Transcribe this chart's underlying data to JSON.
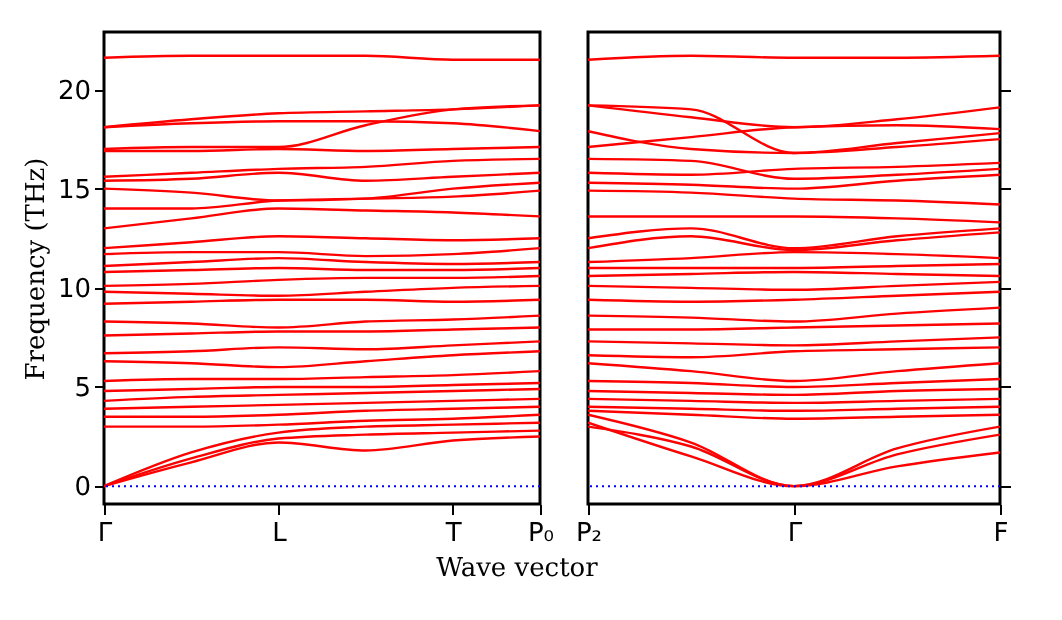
{
  "chart_data": [
    {
      "type": "line",
      "xlabel": "Wave vector",
      "ylabel": "Frequency (THz)",
      "categories": [
        "Γ",
        null,
        "L",
        null,
        "T",
        "P₀"
      ],
      "ylim": [
        -0.9,
        22.9
      ],
      "yticks": [
        0,
        5,
        10,
        15,
        20
      ],
      "grid": false,
      "legend": false,
      "marker": "none",
      "line_style": "solid",
      "ref_lines": [
        {
          "axis": "y",
          "value": 0,
          "color": "#0000ff",
          "line_style": "dotted"
        }
      ],
      "series": [
        {
          "color": "#ff0000",
          "values": [
            0,
            1.2,
            2.2,
            1.8,
            2.3,
            2.5
          ]
        },
        {
          "color": "#ff0000",
          "values": [
            0,
            1.4,
            2.4,
            2.6,
            2.7,
            2.8
          ]
        },
        {
          "color": "#ff0000",
          "values": [
            0,
            1.7,
            2.7,
            3.0,
            3.1,
            3.2
          ]
        },
        {
          "color": "#ff0000",
          "values": [
            3.0,
            3.0,
            3.1,
            3.3,
            3.4,
            3.6
          ]
        },
        {
          "color": "#ff0000",
          "values": [
            3.5,
            3.5,
            3.6,
            3.8,
            3.9,
            4.0
          ]
        },
        {
          "color": "#ff0000",
          "values": [
            3.9,
            4.0,
            4.1,
            4.2,
            4.3,
            4.4
          ]
        },
        {
          "color": "#ff0000",
          "values": [
            4.3,
            4.5,
            4.6,
            4.7,
            4.8,
            4.9
          ]
        },
        {
          "color": "#ff0000",
          "values": [
            4.8,
            4.9,
            5.0,
            5.0,
            5.1,
            5.2
          ]
        },
        {
          "color": "#ff0000",
          "values": [
            5.3,
            5.4,
            5.4,
            5.5,
            5.6,
            5.8
          ]
        },
        {
          "color": "#ff0000",
          "values": [
            6.3,
            6.2,
            6.0,
            6.3,
            6.6,
            6.8
          ]
        },
        {
          "color": "#ff0000",
          "values": [
            6.7,
            6.8,
            7.0,
            6.9,
            7.1,
            7.3
          ]
        },
        {
          "color": "#ff0000",
          "values": [
            7.6,
            7.7,
            7.8,
            7.8,
            7.9,
            8.0
          ]
        },
        {
          "color": "#ff0000",
          "values": [
            8.3,
            8.2,
            8.0,
            8.3,
            8.4,
            8.6
          ]
        },
        {
          "color": "#ff0000",
          "values": [
            9.2,
            9.3,
            9.4,
            9.4,
            9.3,
            9.4
          ]
        },
        {
          "color": "#ff0000",
          "values": [
            9.8,
            9.7,
            9.6,
            9.8,
            10.0,
            10.1
          ]
        },
        {
          "color": "#ff0000",
          "values": [
            10.1,
            10.2,
            10.4,
            10.5,
            10.5,
            10.6
          ]
        },
        {
          "color": "#ff0000",
          "values": [
            10.8,
            10.9,
            11.0,
            10.9,
            10.9,
            11.0
          ]
        },
        {
          "color": "#ff0000",
          "values": [
            11.1,
            11.3,
            11.5,
            11.3,
            11.2,
            11.3
          ]
        },
        {
          "color": "#ff0000",
          "values": [
            11.7,
            11.8,
            11.8,
            11.6,
            11.7,
            12.0
          ]
        },
        {
          "color": "#ff0000",
          "values": [
            12.0,
            12.3,
            12.6,
            12.5,
            12.4,
            12.5
          ]
        },
        {
          "color": "#ff0000",
          "values": [
            13.0,
            13.5,
            14.0,
            13.9,
            13.8,
            13.6
          ]
        },
        {
          "color": "#ff0000",
          "values": [
            14.0,
            14.0,
            14.4,
            14.5,
            14.6,
            14.9
          ]
        },
        {
          "color": "#ff0000",
          "values": [
            15.0,
            14.8,
            14.4,
            14.5,
            15.0,
            15.3
          ]
        },
        {
          "color": "#ff0000",
          "values": [
            15.4,
            15.5,
            15.8,
            15.4,
            15.6,
            15.8
          ]
        },
        {
          "color": "#ff0000",
          "values": [
            15.6,
            15.8,
            16.0,
            16.1,
            16.4,
            16.5
          ]
        },
        {
          "color": "#ff0000",
          "values": [
            16.9,
            16.9,
            17.0,
            16.9,
            17.0,
            17.1
          ]
        },
        {
          "color": "#ff0000",
          "values": [
            17.0,
            17.1,
            17.1,
            18.2,
            19.0,
            19.2
          ]
        },
        {
          "color": "#ff0000",
          "values": [
            18.1,
            18.3,
            18.4,
            18.4,
            18.3,
            17.9
          ]
        },
        {
          "color": "#ff0000",
          "values": [
            18.1,
            18.5,
            18.8,
            18.9,
            19.0,
            19.2
          ]
        },
        {
          "color": "#ff0000",
          "values": [
            21.6,
            21.7,
            21.7,
            21.7,
            21.5,
            21.5
          ]
        }
      ]
    },
    {
      "type": "line",
      "categories": [
        "P₂",
        null,
        "Γ",
        null,
        "F"
      ],
      "ylim": [
        -0.9,
        22.9
      ],
      "yticks": [
        0,
        5,
        10,
        15,
        20
      ],
      "tick_labels": "x",
      "grid": false,
      "legend": false,
      "marker": "none",
      "line_style": "solid",
      "ref_lines": [
        {
          "axis": "y",
          "value": 0,
          "color": "#0000ff",
          "line_style": "dotted"
        }
      ],
      "series": [
        {
          "color": "#ff0000",
          "values": [
            3.2,
            1.5,
            0,
            1.0,
            1.7
          ]
        },
        {
          "color": "#ff0000",
          "values": [
            3.0,
            2.0,
            0,
            1.6,
            2.6
          ]
        },
        {
          "color": "#ff0000",
          "values": [
            3.6,
            2.2,
            0,
            1.9,
            3.0
          ]
        },
        {
          "color": "#ff0000",
          "values": [
            3.8,
            3.6,
            3.4,
            3.5,
            3.6
          ]
        },
        {
          "color": "#ff0000",
          "values": [
            4.0,
            3.9,
            3.8,
            3.9,
            4.0
          ]
        },
        {
          "color": "#ff0000",
          "values": [
            4.4,
            4.3,
            4.2,
            4.3,
            4.4
          ]
        },
        {
          "color": "#ff0000",
          "values": [
            4.8,
            4.7,
            4.6,
            4.8,
            4.9
          ]
        },
        {
          "color": "#ff0000",
          "values": [
            5.3,
            5.2,
            5.0,
            5.2,
            5.4
          ]
        },
        {
          "color": "#ff0000",
          "values": [
            6.2,
            5.8,
            5.3,
            5.8,
            6.2
          ]
        },
        {
          "color": "#ff0000",
          "values": [
            6.6,
            6.5,
            6.8,
            6.9,
            7.0
          ]
        },
        {
          "color": "#ff0000",
          "values": [
            7.3,
            7.2,
            7.1,
            7.3,
            7.5
          ]
        },
        {
          "color": "#ff0000",
          "values": [
            7.9,
            7.9,
            8.0,
            8.1,
            8.2
          ]
        },
        {
          "color": "#ff0000",
          "values": [
            8.6,
            8.5,
            8.3,
            8.7,
            9.0
          ]
        },
        {
          "color": "#ff0000",
          "values": [
            9.4,
            9.3,
            9.4,
            9.6,
            9.8
          ]
        },
        {
          "color": "#ff0000",
          "values": [
            10.1,
            10.0,
            9.9,
            10.1,
            10.3
          ]
        },
        {
          "color": "#ff0000",
          "values": [
            10.6,
            10.7,
            10.8,
            10.7,
            10.6
          ]
        },
        {
          "color": "#ff0000",
          "values": [
            11.0,
            11.0,
            11.0,
            11.1,
            11.2
          ]
        },
        {
          "color": "#ff0000",
          "values": [
            11.3,
            11.5,
            11.8,
            11.7,
            11.5
          ]
        },
        {
          "color": "#ff0000",
          "values": [
            12.0,
            12.6,
            11.9,
            12.4,
            12.8
          ]
        },
        {
          "color": "#ff0000",
          "values": [
            12.5,
            13.0,
            12.0,
            12.6,
            13.0
          ]
        },
        {
          "color": "#ff0000",
          "values": [
            13.6,
            13.6,
            13.6,
            13.5,
            13.3
          ]
        },
        {
          "color": "#ff0000",
          "values": [
            14.9,
            14.8,
            14.5,
            14.4,
            14.2
          ]
        },
        {
          "color": "#ff0000",
          "values": [
            15.3,
            15.2,
            15.0,
            15.4,
            15.7
          ]
        },
        {
          "color": "#ff0000",
          "values": [
            15.8,
            15.7,
            16.0,
            16.1,
            16.3
          ]
        },
        {
          "color": "#ff0000",
          "values": [
            16.5,
            16.4,
            15.5,
            15.7,
            16.0
          ]
        },
        {
          "color": "#ff0000",
          "values": [
            17.1,
            17.6,
            18.1,
            18.2,
            18.0
          ]
        },
        {
          "color": "#ff0000",
          "values": [
            19.2,
            19.0,
            16.8,
            17.3,
            17.8
          ]
        },
        {
          "color": "#ff0000",
          "values": [
            17.9,
            17.0,
            16.8,
            17.1,
            17.5
          ]
        },
        {
          "color": "#ff0000",
          "values": [
            19.2,
            18.6,
            18.1,
            18.5,
            19.1
          ]
        },
        {
          "color": "#ff0000",
          "values": [
            21.5,
            21.7,
            21.6,
            21.6,
            21.7
          ]
        }
      ]
    }
  ]
}
